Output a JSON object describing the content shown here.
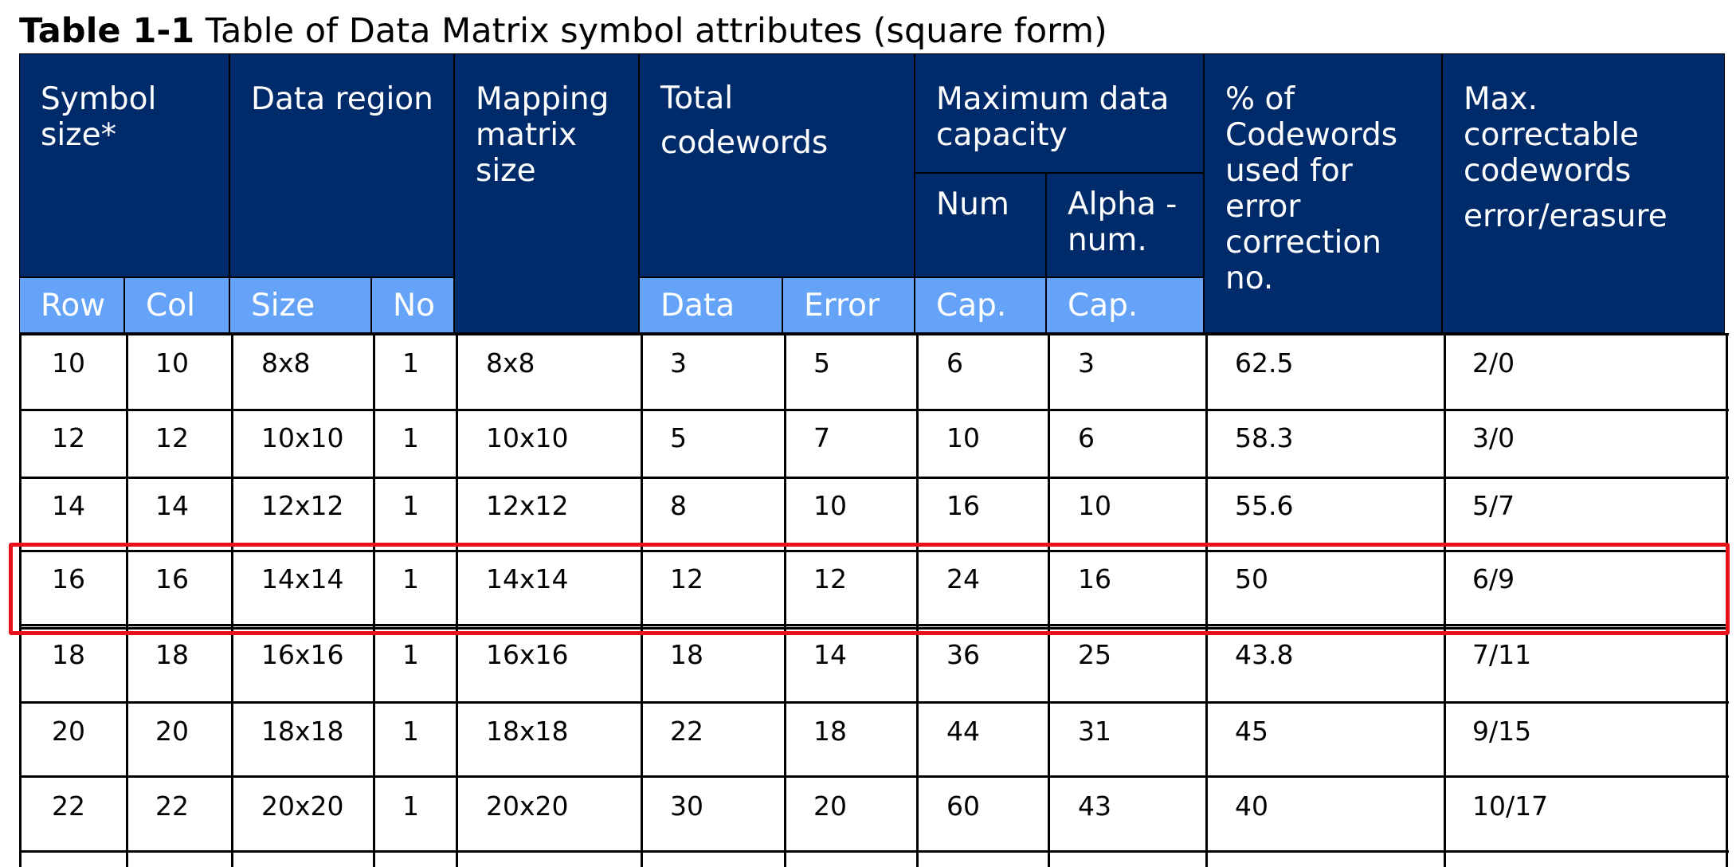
{
  "caption": {
    "label": "Table 1-1",
    "title": "Table of Data Matrix symbol attributes (square form)"
  },
  "headers": {
    "symbol_size": "Symbol size*",
    "data_region": "Data region",
    "mapping_matrix": "Mapping matrix size",
    "total_codewords": "Total codewords",
    "max_capacity": "Maximum data capacity",
    "num": "Num",
    "alphanum": "Alpha - num.",
    "pct": "% of Codewords used for error correction no.",
    "maxcorr": "Max. correctable codewords",
    "maxcorr_sub": "error/erasure",
    "row": "Row",
    "col": "Col",
    "size": "Size",
    "no": "No",
    "data": "Data",
    "error": "Error",
    "cap_num": "Cap.",
    "cap_alpha": "Cap."
  },
  "rows": [
    [
      "10",
      "10",
      "8x8",
      "1",
      "8x8",
      "3",
      "5",
      "6",
      "3",
      "62.5",
      "2/0"
    ],
    [
      "12",
      "12",
      "10x10",
      "1",
      "10x10",
      "5",
      "7",
      "10",
      "6",
      "58.3",
      "3/0"
    ],
    [
      "14",
      "14",
      "12x12",
      "1",
      "12x12",
      "8",
      "10",
      "16",
      "10",
      "55.6",
      "5/7"
    ],
    [
      "16",
      "16",
      "14x14",
      "1",
      "14x14",
      "12",
      "12",
      "24",
      "16",
      "50",
      "6/9"
    ],
    [
      "18",
      "18",
      "16x16",
      "1",
      "16x16",
      "18",
      "14",
      "36",
      "25",
      "43.8",
      "7/11"
    ],
    [
      "20",
      "20",
      "18x18",
      "1",
      "18x18",
      "22",
      "18",
      "44",
      "31",
      "45",
      "9/15"
    ],
    [
      "22",
      "22",
      "20x20",
      "1",
      "20x20",
      "30",
      "20",
      "60",
      "43",
      "40",
      "10/17"
    ]
  ],
  "highlight": {
    "row_index": 3,
    "color": "#e8111b"
  },
  "colors": {
    "header_dark": "#002b6b",
    "header_light": "#64a3f7"
  }
}
